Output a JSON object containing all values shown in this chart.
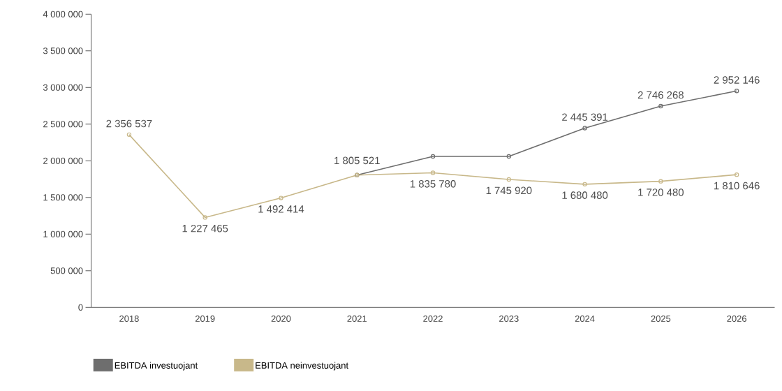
{
  "chart_data": {
    "type": "line",
    "categories": [
      "2018",
      "2019",
      "2020",
      "2021",
      "2022",
      "2023",
      "2024",
      "2025",
      "2026"
    ],
    "series": [
      {
        "name": "EBITDA investuojant",
        "color": "#6e6e6e",
        "values": [
          null,
          null,
          null,
          1805521,
          2060000,
          2060000,
          2445391,
          2746268,
          2952146
        ],
        "value_labels": [
          null,
          null,
          null,
          null,
          null,
          null,
          "2 445 391",
          "2 746 268",
          "2 952 146"
        ]
      },
      {
        "name": "EBITDA neinvestuojant",
        "color": "#c8b88a",
        "values": [
          2356537,
          1227465,
          1492414,
          1805521,
          1835780,
          1745920,
          1680480,
          1720480,
          1810646
        ],
        "value_labels": [
          "2 356 537",
          "1 227 465",
          "1 492 414",
          "1 805 521",
          "1 835 780",
          "1 745 920",
          "1 680 480",
          "1 720 480",
          "1 810 646"
        ]
      }
    ],
    "ylim": [
      0,
      4000000
    ],
    "yticks": [
      {
        "value": 0,
        "label": "0"
      },
      {
        "value": 500000,
        "label": "500 000"
      },
      {
        "value": 1000000,
        "label": "1 000 000"
      },
      {
        "value": 1500000,
        "label": "1 500 000"
      },
      {
        "value": 2000000,
        "label": "2 000 000"
      },
      {
        "value": 2500000,
        "label": "2 500 000"
      },
      {
        "value": 3000000,
        "label": "3 000 000"
      },
      {
        "value": 3500000,
        "label": "3 500 000"
      },
      {
        "value": 4000000,
        "label": "4 000 000"
      }
    ],
    "legend": "bottom left",
    "marker": "circle",
    "line_style": "solid",
    "grid": false
  }
}
